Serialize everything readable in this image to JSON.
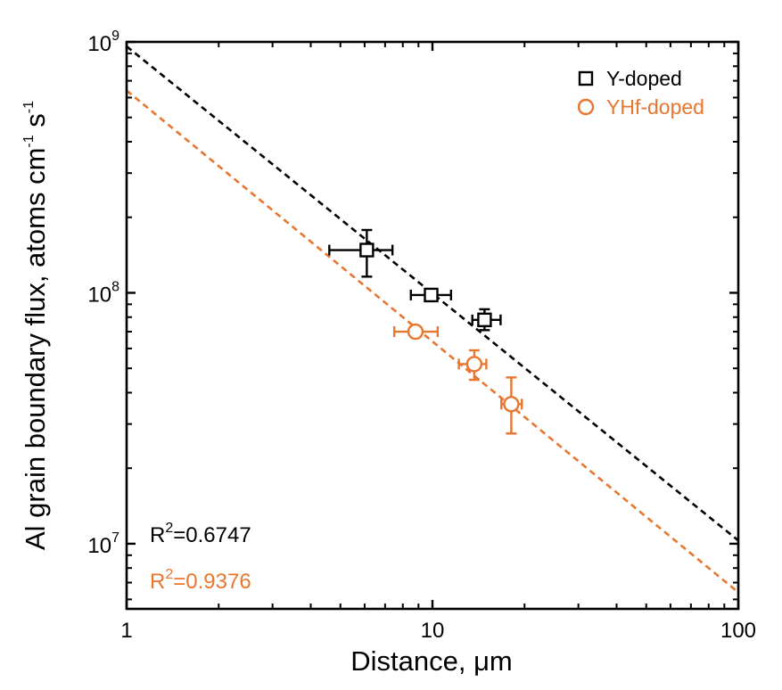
{
  "chart_data": {
    "type": "scatter",
    "title": "",
    "xlabel": "Distance, μm",
    "ylabel": {
      "main": "Al grain boundary flux, atoms cm",
      "exp1": "-1",
      "mid": " s",
      "exp2": "-1"
    },
    "x_scale": "log",
    "y_scale": "log",
    "xlim": [
      1,
      100
    ],
    "ylim": [
      5500000,
      1000000000
    ],
    "x_ticks": [
      {
        "value": 1,
        "label": "1"
      },
      {
        "value": 10,
        "label": "10"
      },
      {
        "value": 100,
        "label": "100"
      }
    ],
    "y_ticks": [
      {
        "value": 10000000,
        "base": "10",
        "exp": "7"
      },
      {
        "value": 100000000,
        "base": "10",
        "exp": "8"
      },
      {
        "value": 1000000000,
        "base": "10",
        "exp": "9"
      }
    ],
    "grid": false,
    "legend_position": "top-right",
    "series": [
      {
        "name": "Y-doped",
        "marker": "square",
        "color": "#000000",
        "points": [
          {
            "x": 6.1,
            "y": 148000000,
            "xerr": [
              4.6,
              7.4
            ],
            "yerr": [
              116000000,
              178000000
            ]
          },
          {
            "x": 9.9,
            "y": 98000000,
            "xerr": [
              8.5,
              11.5
            ],
            "yerr": [
              96000000,
              100000000
            ]
          },
          {
            "x": 14.8,
            "y": 78000000,
            "xerr": [
              13.5,
              16.7
            ],
            "yerr": [
              71000000,
              86000000
            ]
          }
        ],
        "fit": {
          "x": [
            1,
            100
          ],
          "y": [
            960000000,
            10300000
          ]
        },
        "annotation": {
          "base": "R",
          "exp": "2",
          "rest": "=0.6747"
        }
      },
      {
        "name": "YHf-doped",
        "marker": "circle",
        "color": "#E8762F",
        "points": [
          {
            "x": 8.8,
            "y": 70000000,
            "xerr": [
              7.5,
              10.4
            ],
            "yerr": [
              68000000,
              72000000
            ]
          },
          {
            "x": 13.7,
            "y": 52000000,
            "xerr": [
              12.2,
              15.0
            ],
            "yerr": [
              45000000,
              59000000
            ]
          },
          {
            "x": 18.1,
            "y": 36000000,
            "xerr": [
              16.8,
              19.6
            ],
            "yerr": [
              27500000,
              46000000
            ]
          }
        ],
        "fit": {
          "x": [
            1,
            100
          ],
          "y": [
            640000000,
            6400000
          ]
        },
        "annotation": {
          "base": "R",
          "exp": "2",
          "rest": "=0.9376"
        }
      }
    ]
  }
}
